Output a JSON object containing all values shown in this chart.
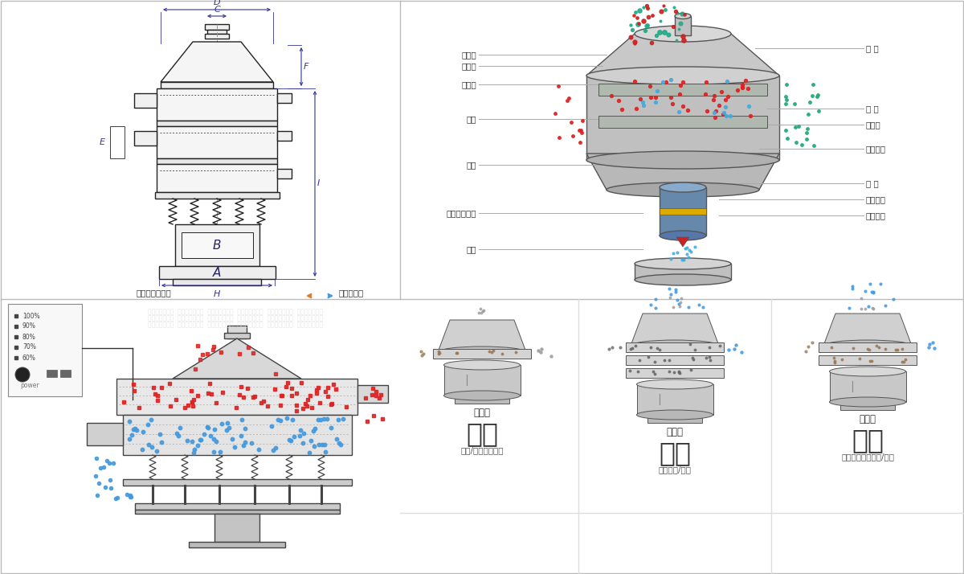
{
  "bg_color": "#ffffff",
  "top_left_label": "外形尺寸示意图",
  "top_right_label": "结构示意图",
  "right_labels_left": [
    "进料口",
    "防尘盖",
    "出料口",
    "束环",
    "弹簧",
    "运输固定螺栻",
    "机座"
  ],
  "right_labels_right": [
    "筛 网",
    "网 架",
    "加重块",
    "上部重锤",
    "筛 盘",
    "振动电机",
    "下部重锤"
  ],
  "bottom_titles": [
    "单层式",
    "三层式",
    "双层式"
  ],
  "bottom_big_titles": [
    "分级",
    "过滤",
    "除杂"
  ],
  "bottom_subtitles": [
    "额粒/粉末准确分级",
    "去除异物/结块",
    "去除液体中的额粒/异物"
  ],
  "dim_color": "#333399",
  "arrow_color_orange": "#e87722",
  "arrow_color_blue": "#4499dd",
  "control_labels": [
    "100%",
    "90%",
    "80%",
    "70%",
    "60%"
  ]
}
